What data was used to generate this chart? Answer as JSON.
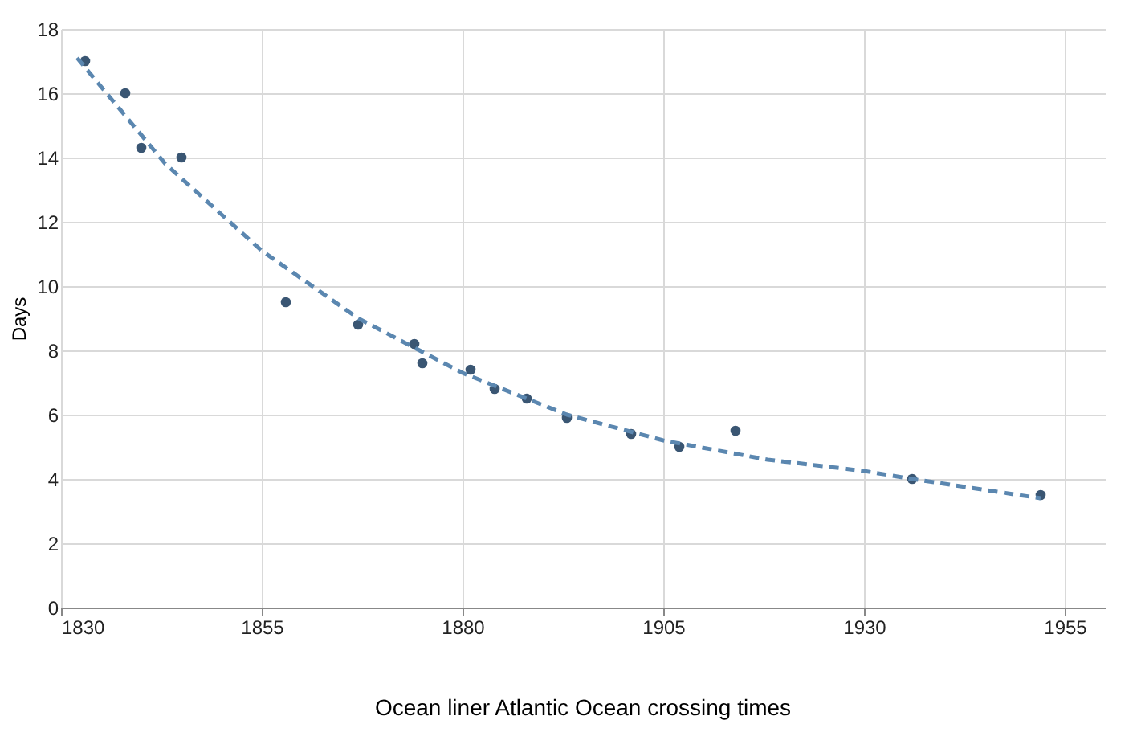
{
  "chart_data": {
    "type": "scatter",
    "title": "Ocean liner Atlantic Ocean crossing times",
    "ylabel": "Days",
    "xlim": [
      1830,
      1960
    ],
    "xticks": [
      1830,
      1855,
      1880,
      1905,
      1930,
      1955
    ],
    "ylim": [
      0,
      18
    ],
    "yticks": [
      0,
      2,
      4,
      6,
      8,
      10,
      12,
      14,
      16,
      18
    ],
    "grid": true,
    "marker": "circle",
    "series": [
      {
        "type": "scatter",
        "color": "#3a5673",
        "x": [
          1833,
          1838,
          1840,
          1845,
          1858,
          1867,
          1874,
          1875,
          1881,
          1884,
          1888,
          1893,
          1901,
          1907,
          1914,
          1936,
          1952
        ],
        "values": [
          17.0,
          16.0,
          14.3,
          14.0,
          9.5,
          8.8,
          8.2,
          7.6,
          7.4,
          6.8,
          6.5,
          5.9,
          5.4,
          5.0,
          5.5,
          4.0,
          3.5
        ]
      },
      {
        "type": "line",
        "color": "#5b87b0",
        "line_style": "dashed",
        "marker": "none",
        "x": [
          1832,
          1843,
          1855,
          1867,
          1880,
          1893,
          1905,
          1918,
          1930,
          1936,
          1952
        ],
        "values": [
          17.1,
          13.8,
          11.1,
          9.0,
          7.3,
          6.0,
          5.2,
          4.6,
          4.25,
          4.0,
          3.4
        ]
      }
    ]
  }
}
